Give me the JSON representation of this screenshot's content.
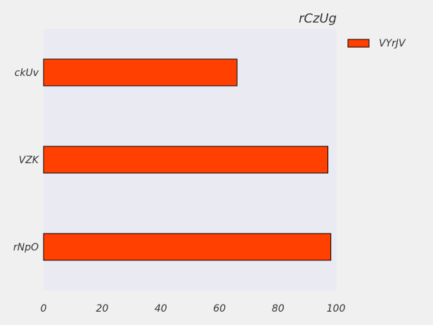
{
  "chart_data": {
    "type": "bar",
    "orientation": "horizontal",
    "title": "rCzUg",
    "xlabel": "",
    "ylabel": "",
    "categories": [
      "ckUv",
      "VZK",
      "rNpO"
    ],
    "series": [
      {
        "name": "VYrJV",
        "values": [
          66,
          97,
          98
        ],
        "color": "#ff4000"
      }
    ],
    "xlim": [
      0,
      100
    ],
    "xticks": [
      0,
      20,
      40,
      60,
      80,
      100
    ],
    "grid": false,
    "legend_position": "top-right",
    "plot_background": "#eaeaf2",
    "figure_background": "#f0f0f0"
  }
}
